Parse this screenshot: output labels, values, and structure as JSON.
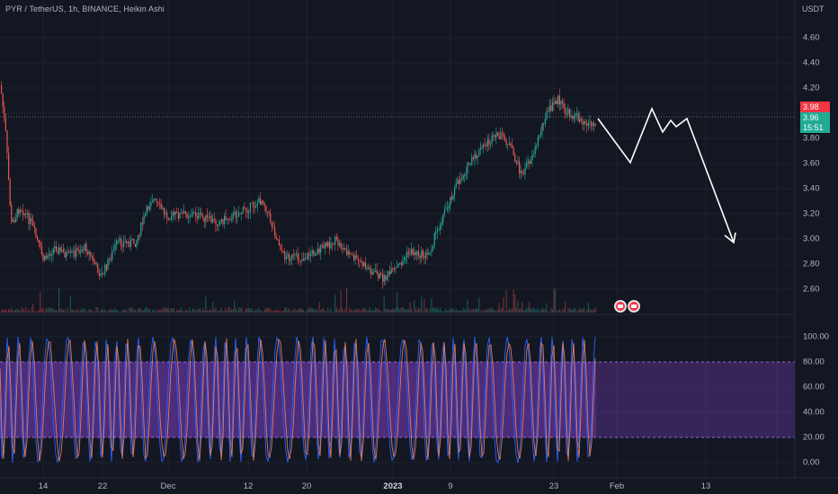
{
  "header": {
    "symbol_title": "PYR / TetherUS, 1h, BINANCE, Heikin Ashi"
  },
  "price_axis": {
    "unit": "USDT",
    "ticks": [
      "4.60",
      "4.40",
      "4.20",
      "3.80",
      "3.60",
      "3.40",
      "3.20",
      "3.00",
      "2.80",
      "2.60"
    ]
  },
  "price_tags": {
    "last_close": "3.98",
    "current": "3.96",
    "countdown": "15:51"
  },
  "oscillator_axis": {
    "ticks": [
      "100.00",
      "80.00",
      "60.00",
      "40.00",
      "20.00",
      "0.00"
    ],
    "upper_band": 80,
    "lower_band": 20
  },
  "time_axis": {
    "labels": [
      "14",
      "22",
      "Dec",
      "12",
      "20",
      "2023",
      "9",
      "23",
      "Feb",
      "13"
    ]
  },
  "colors": {
    "background": "#131722",
    "up": "#26a69a",
    "down": "#ef5350",
    "band_fill": "#7b3fc4",
    "projection": "#ffffff"
  },
  "icons": [
    "event-flag-icon",
    "event-flag-icon"
  ]
}
